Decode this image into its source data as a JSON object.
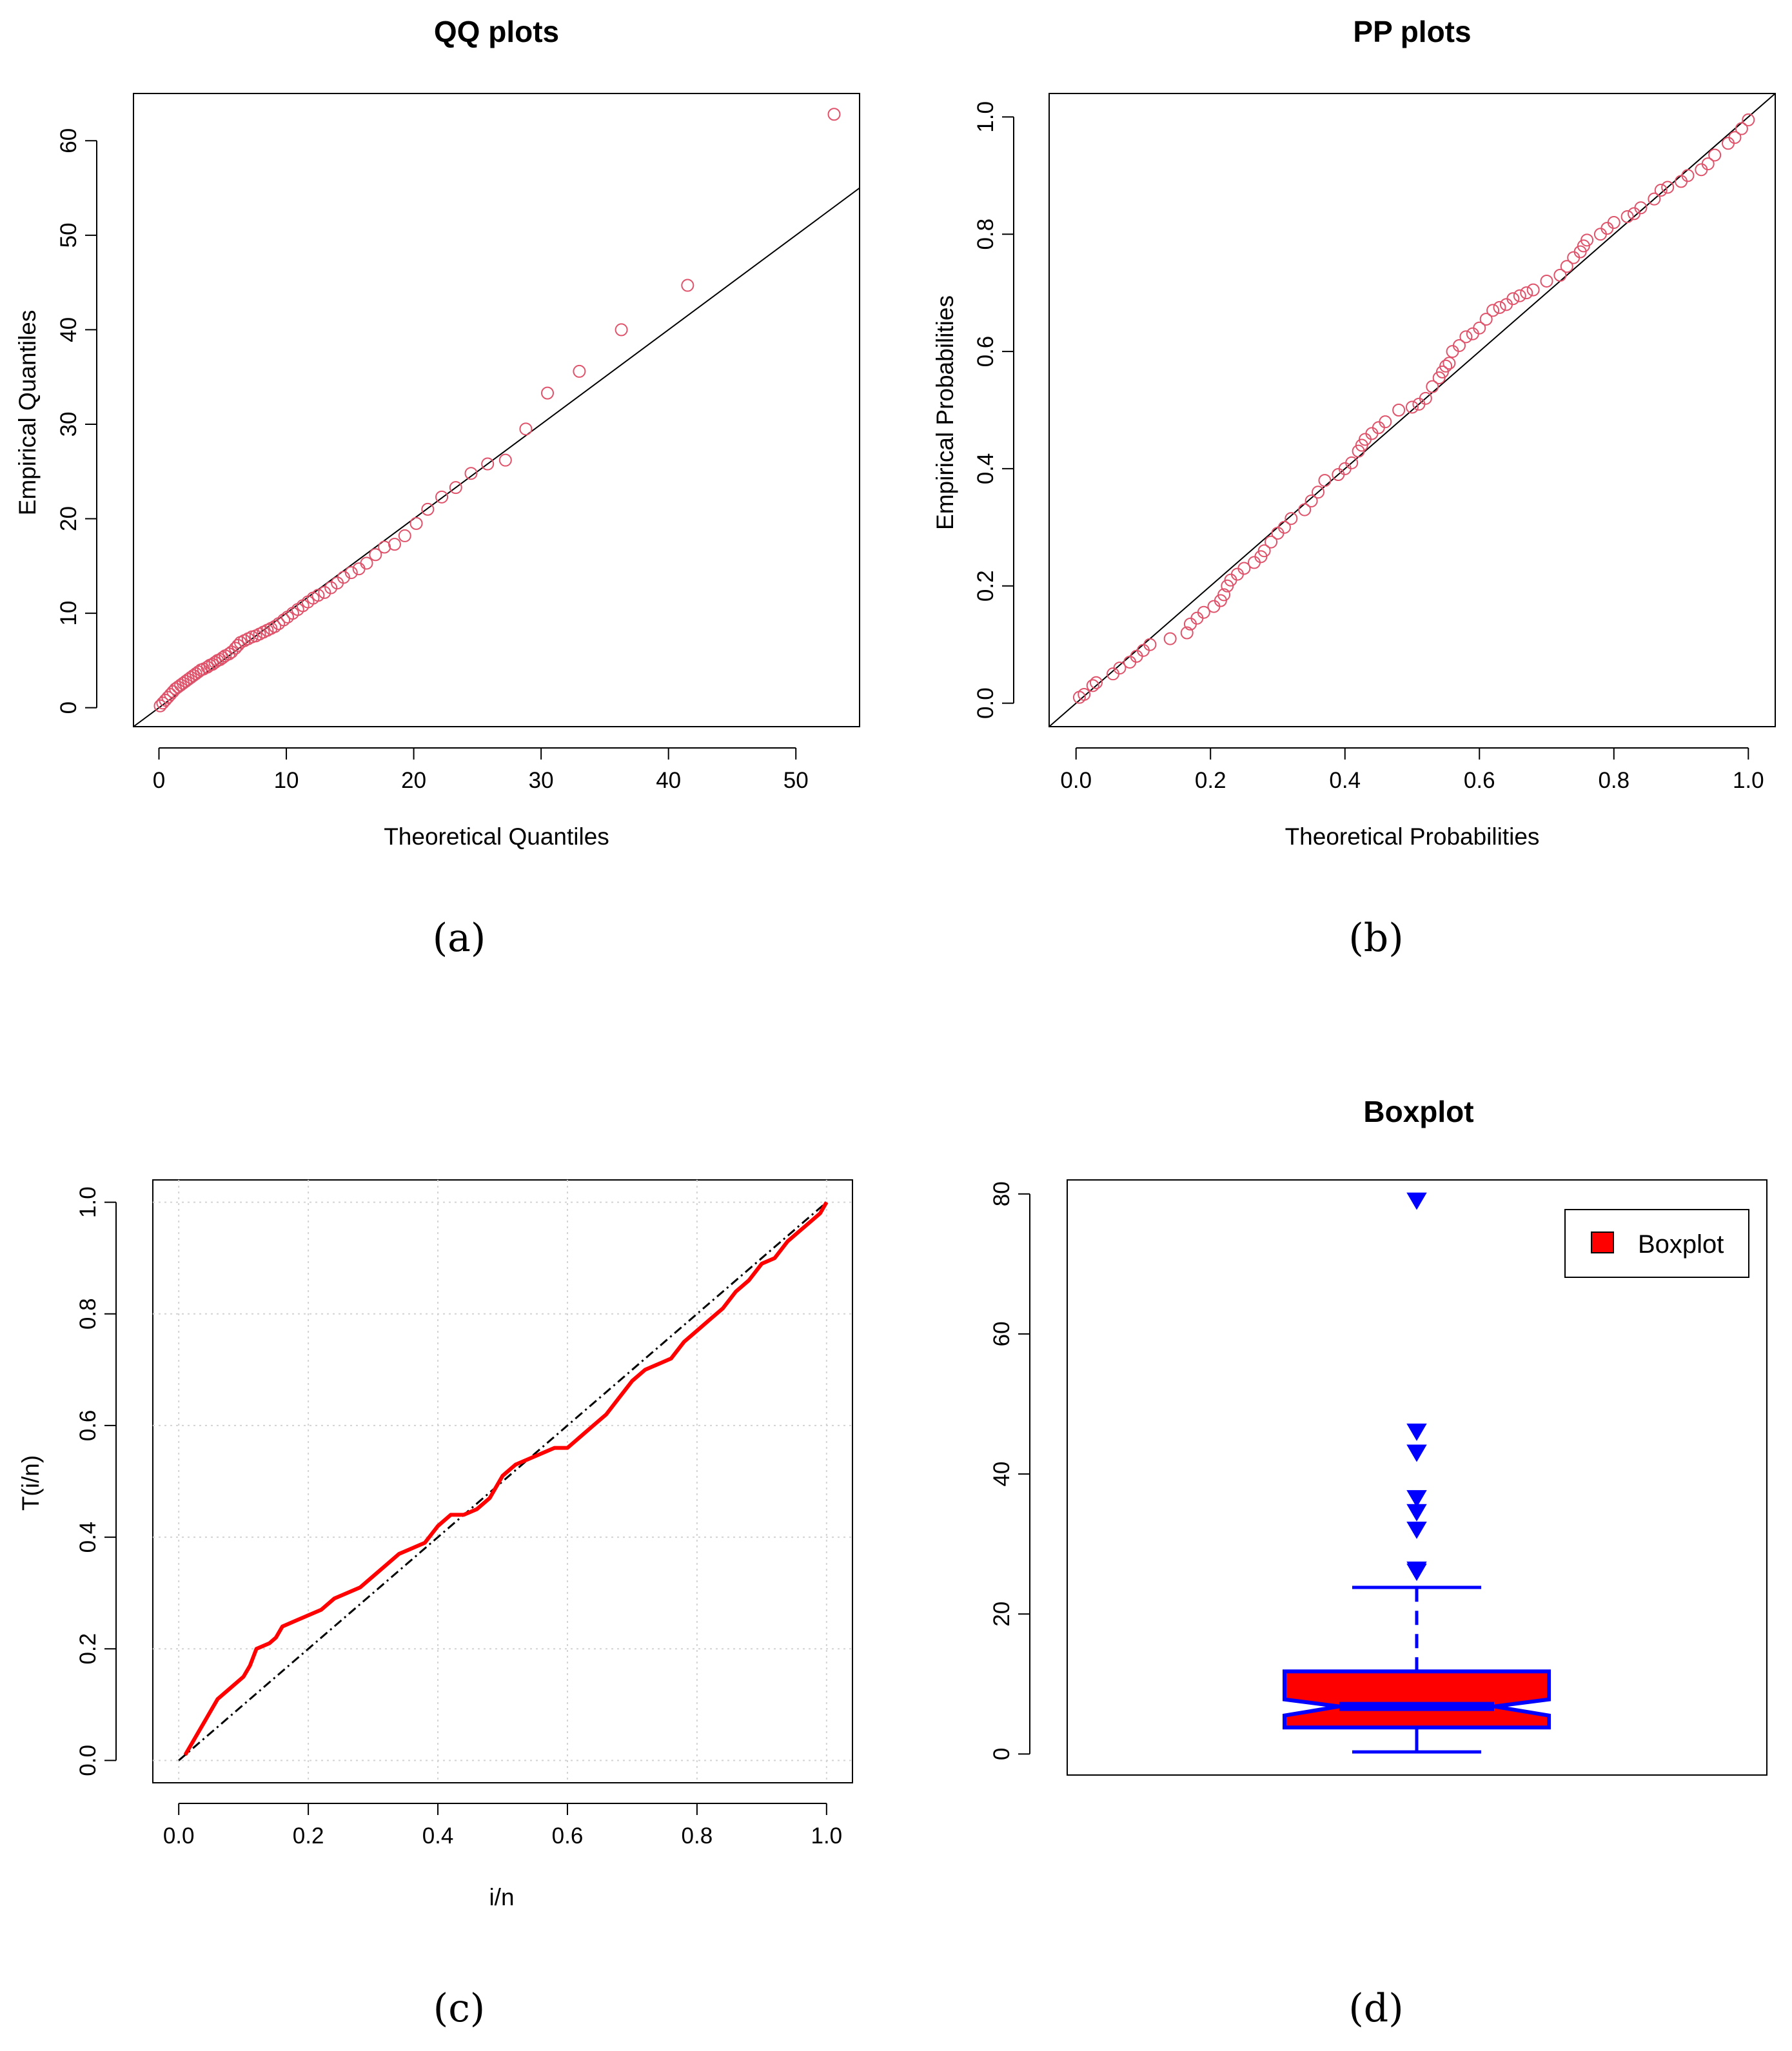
{
  "colors": {
    "qq_points": "#DF536B",
    "pp_points": "#DF536B",
    "ttt_curve": "#FF0000",
    "box_fill": "#FF0000",
    "box_border": "#0000FF",
    "ref_line": "#000000"
  },
  "chart_data": [
    {
      "panel": "a",
      "type": "scatter",
      "title": "QQ plots",
      "xlabel": "Theoretical Quantiles",
      "ylabel": "Empirical Quantiles",
      "caption": "(a)",
      "xlim": [
        -2,
        55
      ],
      "ylim": [
        -2,
        65
      ],
      "xticks": [
        0,
        10,
        20,
        30,
        40,
        50
      ],
      "yticks": [
        0,
        10,
        20,
        30,
        40,
        50,
        60
      ],
      "reference_line": {
        "slope": 1.0,
        "intercept": 0
      },
      "series": [
        {
          "name": "QQ points",
          "x": [
            0.1,
            0.3,
            0.5,
            0.7,
            0.9,
            1.1,
            1.3,
            1.5,
            1.7,
            1.9,
            2.1,
            2.3,
            2.5,
            2.7,
            2.9,
            3.1,
            3.3,
            3.5,
            3.8,
            4.0,
            4.2,
            4.4,
            4.6,
            4.8,
            5.0,
            5.2,
            5.5,
            5.7,
            6.0,
            6.2,
            6.4,
            6.7,
            7.0,
            7.3,
            7.6,
            7.9,
            8.2,
            8.5,
            8.8,
            9.1,
            9.4,
            9.8,
            10.1,
            10.5,
            10.9,
            11.3,
            11.7,
            12.1,
            12.5,
            13.0,
            13.5,
            14.0,
            14.5,
            15.1,
            15.7,
            16.3,
            17.0,
            17.7,
            18.5,
            19.3,
            20.2,
            21.1,
            22.2,
            23.3,
            24.5,
            25.8,
            27.2,
            28.8,
            30.5,
            33.0,
            36.3,
            41.5,
            53.0
          ],
          "y": [
            0.2,
            0.5,
            0.8,
            1.1,
            1.4,
            1.7,
            2.0,
            2.2,
            2.4,
            2.6,
            2.8,
            3.0,
            3.2,
            3.4,
            3.6,
            3.8,
            4.0,
            4.1,
            4.3,
            4.5,
            4.6,
            4.8,
            5.0,
            5.1,
            5.3,
            5.5,
            5.7,
            5.9,
            6.3,
            6.6,
            6.9,
            7.1,
            7.3,
            7.5,
            7.6,
            7.8,
            8.0,
            8.2,
            8.4,
            8.6,
            8.9,
            9.3,
            9.6,
            10.0,
            10.4,
            10.8,
            11.2,
            11.6,
            11.9,
            12.2,
            12.7,
            13.2,
            13.8,
            14.3,
            14.7,
            15.3,
            16.2,
            17.0,
            17.3,
            18.2,
            19.5,
            21.0,
            22.3,
            23.3,
            24.8,
            25.8,
            26.2,
            29.5,
            33.3,
            35.6,
            40.0,
            44.7,
            62.8
          ]
        }
      ]
    },
    {
      "panel": "b",
      "type": "scatter",
      "title": "PP plots",
      "xlabel": "Theoretical Probabilities",
      "ylabel": "Empirical Probabilities",
      "caption": "(b)",
      "xlim": [
        -0.04,
        1.04
      ],
      "ylim": [
        -0.04,
        1.04
      ],
      "xticks": [
        "0.0",
        "0.2",
        "0.4",
        "0.6",
        "0.8",
        "1.0"
      ],
      "yticks": [
        "0.0",
        "0.2",
        "0.4",
        "0.6",
        "0.8",
        "1.0"
      ],
      "reference_line": {
        "slope": 1.0,
        "intercept": 0
      },
      "series": [
        {
          "name": "PP points",
          "x": [
            0.005,
            0.012,
            0.025,
            0.03,
            0.055,
            0.065,
            0.08,
            0.09,
            0.1,
            0.11,
            0.14,
            0.165,
            0.17,
            0.18,
            0.19,
            0.205,
            0.215,
            0.22,
            0.225,
            0.23,
            0.24,
            0.25,
            0.265,
            0.275,
            0.28,
            0.29,
            0.3,
            0.31,
            0.32,
            0.34,
            0.35,
            0.36,
            0.37,
            0.39,
            0.4,
            0.41,
            0.42,
            0.425,
            0.43,
            0.44,
            0.45,
            0.46,
            0.48,
            0.5,
            0.51,
            0.52,
            0.53,
            0.54,
            0.545,
            0.55,
            0.555,
            0.56,
            0.57,
            0.58,
            0.59,
            0.6,
            0.61,
            0.62,
            0.63,
            0.64,
            0.65,
            0.66,
            0.67,
            0.68,
            0.7,
            0.72,
            0.73,
            0.74,
            0.75,
            0.755,
            0.76,
            0.78,
            0.79,
            0.8,
            0.82,
            0.83,
            0.84,
            0.86,
            0.87,
            0.88,
            0.9,
            0.91,
            0.93,
            0.94,
            0.95,
            0.97,
            0.98,
            0.99,
            1.0
          ],
          "y": [
            0.01,
            0.015,
            0.03,
            0.035,
            0.05,
            0.06,
            0.07,
            0.08,
            0.09,
            0.1,
            0.11,
            0.12,
            0.135,
            0.145,
            0.155,
            0.165,
            0.175,
            0.185,
            0.2,
            0.21,
            0.22,
            0.23,
            0.24,
            0.25,
            0.26,
            0.275,
            0.29,
            0.3,
            0.315,
            0.33,
            0.345,
            0.36,
            0.38,
            0.39,
            0.4,
            0.41,
            0.43,
            0.44,
            0.45,
            0.46,
            0.47,
            0.48,
            0.5,
            0.505,
            0.51,
            0.52,
            0.54,
            0.555,
            0.565,
            0.575,
            0.58,
            0.6,
            0.61,
            0.625,
            0.63,
            0.64,
            0.655,
            0.67,
            0.675,
            0.68,
            0.69,
            0.695,
            0.7,
            0.705,
            0.72,
            0.73,
            0.745,
            0.76,
            0.77,
            0.78,
            0.79,
            0.8,
            0.81,
            0.82,
            0.83,
            0.835,
            0.845,
            0.86,
            0.875,
            0.88,
            0.89,
            0.9,
            0.91,
            0.92,
            0.935,
            0.955,
            0.965,
            0.98,
            0.995
          ]
        }
      ]
    },
    {
      "panel": "c",
      "type": "line",
      "title": "",
      "xlabel": "i/n",
      "ylabel": "T(i/n)",
      "caption": "(c)",
      "xlim": [
        -0.04,
        1.04
      ],
      "ylim": [
        -0.04,
        1.04
      ],
      "xticks": [
        "0.0",
        "0.2",
        "0.4",
        "0.6",
        "0.8",
        "1.0"
      ],
      "yticks": [
        "0.0",
        "0.2",
        "0.4",
        "0.6",
        "0.8",
        "1.0"
      ],
      "grid": true,
      "reference_line": {
        "slope": 1.0,
        "intercept": 0,
        "style": "dot-dash"
      },
      "series": [
        {
          "name": "TTT curve",
          "x": [
            0.01,
            0.02,
            0.03,
            0.04,
            0.05,
            0.06,
            0.08,
            0.1,
            0.11,
            0.12,
            0.14,
            0.15,
            0.16,
            0.18,
            0.2,
            0.22,
            0.24,
            0.26,
            0.28,
            0.3,
            0.32,
            0.34,
            0.36,
            0.38,
            0.4,
            0.42,
            0.44,
            0.46,
            0.48,
            0.5,
            0.52,
            0.54,
            0.56,
            0.58,
            0.6,
            0.62,
            0.64,
            0.66,
            0.68,
            0.7,
            0.72,
            0.74,
            0.76,
            0.78,
            0.8,
            0.82,
            0.84,
            0.86,
            0.88,
            0.9,
            0.92,
            0.94,
            0.96,
            0.98,
            0.99,
            1.0
          ],
          "y": [
            0.01,
            0.03,
            0.05,
            0.07,
            0.09,
            0.11,
            0.13,
            0.15,
            0.17,
            0.2,
            0.21,
            0.22,
            0.24,
            0.25,
            0.26,
            0.27,
            0.29,
            0.3,
            0.31,
            0.33,
            0.35,
            0.37,
            0.38,
            0.39,
            0.42,
            0.44,
            0.44,
            0.45,
            0.47,
            0.51,
            0.53,
            0.54,
            0.55,
            0.56,
            0.56,
            0.58,
            0.6,
            0.62,
            0.65,
            0.68,
            0.7,
            0.71,
            0.72,
            0.75,
            0.77,
            0.79,
            0.81,
            0.84,
            0.86,
            0.89,
            0.9,
            0.93,
            0.95,
            0.97,
            0.98,
            1.0
          ]
        }
      ]
    },
    {
      "panel": "d",
      "type": "boxplot",
      "title": "Boxplot",
      "caption": "(d)",
      "ylim": [
        -3,
        82
      ],
      "yticks": [
        0,
        20,
        40,
        60,
        80
      ],
      "legend": {
        "label": "Boxplot",
        "position": "top-right"
      },
      "box": {
        "min": 0.3,
        "q1": 3.8,
        "median": 6.8,
        "q3": 11.8,
        "whisker_high": 23.8,
        "notch_low": 5.5,
        "notch_high": 7.8
      },
      "outliers": [
        26.0,
        26.3,
        32.0,
        34.5,
        36.5,
        43.0,
        46.0,
        79.0
      ]
    }
  ]
}
